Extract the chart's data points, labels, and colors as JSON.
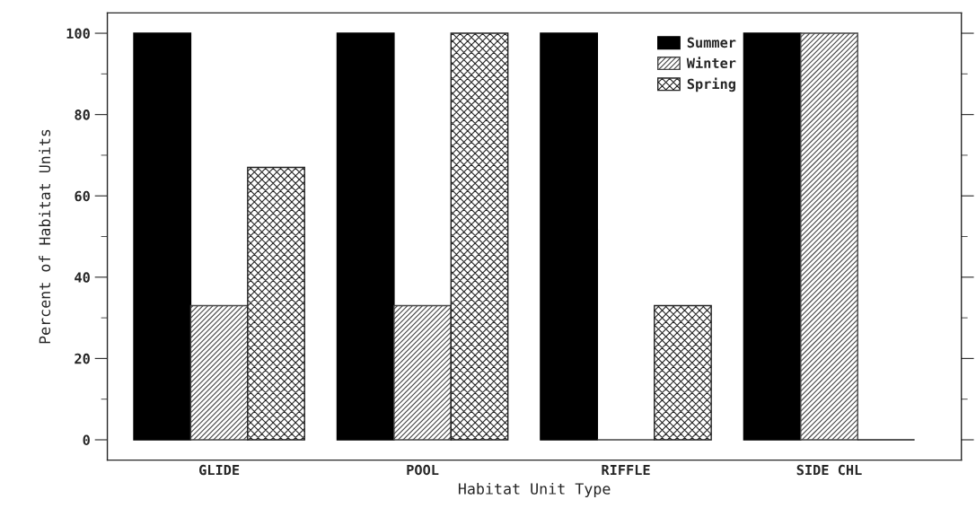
{
  "chart_data": {
    "type": "bar",
    "xlabel": "Habitat Unit Type",
    "ylabel": "Percent of Habitat Units",
    "categories": [
      "GLIDE",
      "POOL",
      "RIFFLE",
      "SIDE CHL"
    ],
    "series": [
      {
        "name": "Summer",
        "color": "#000000",
        "values": [
          100,
          100,
          100,
          100
        ]
      },
      {
        "name": "Winter",
        "color": "#444444",
        "values": [
          33,
          33,
          0,
          100
        ]
      },
      {
        "name": "Spring",
        "color": "#222222",
        "values": [
          67,
          100,
          33,
          0
        ]
      }
    ],
    "ylim": [
      -5,
      105
    ],
    "yticks": [
      0,
      20,
      40,
      60,
      80,
      100
    ],
    "grid": false,
    "legend": "top right"
  }
}
